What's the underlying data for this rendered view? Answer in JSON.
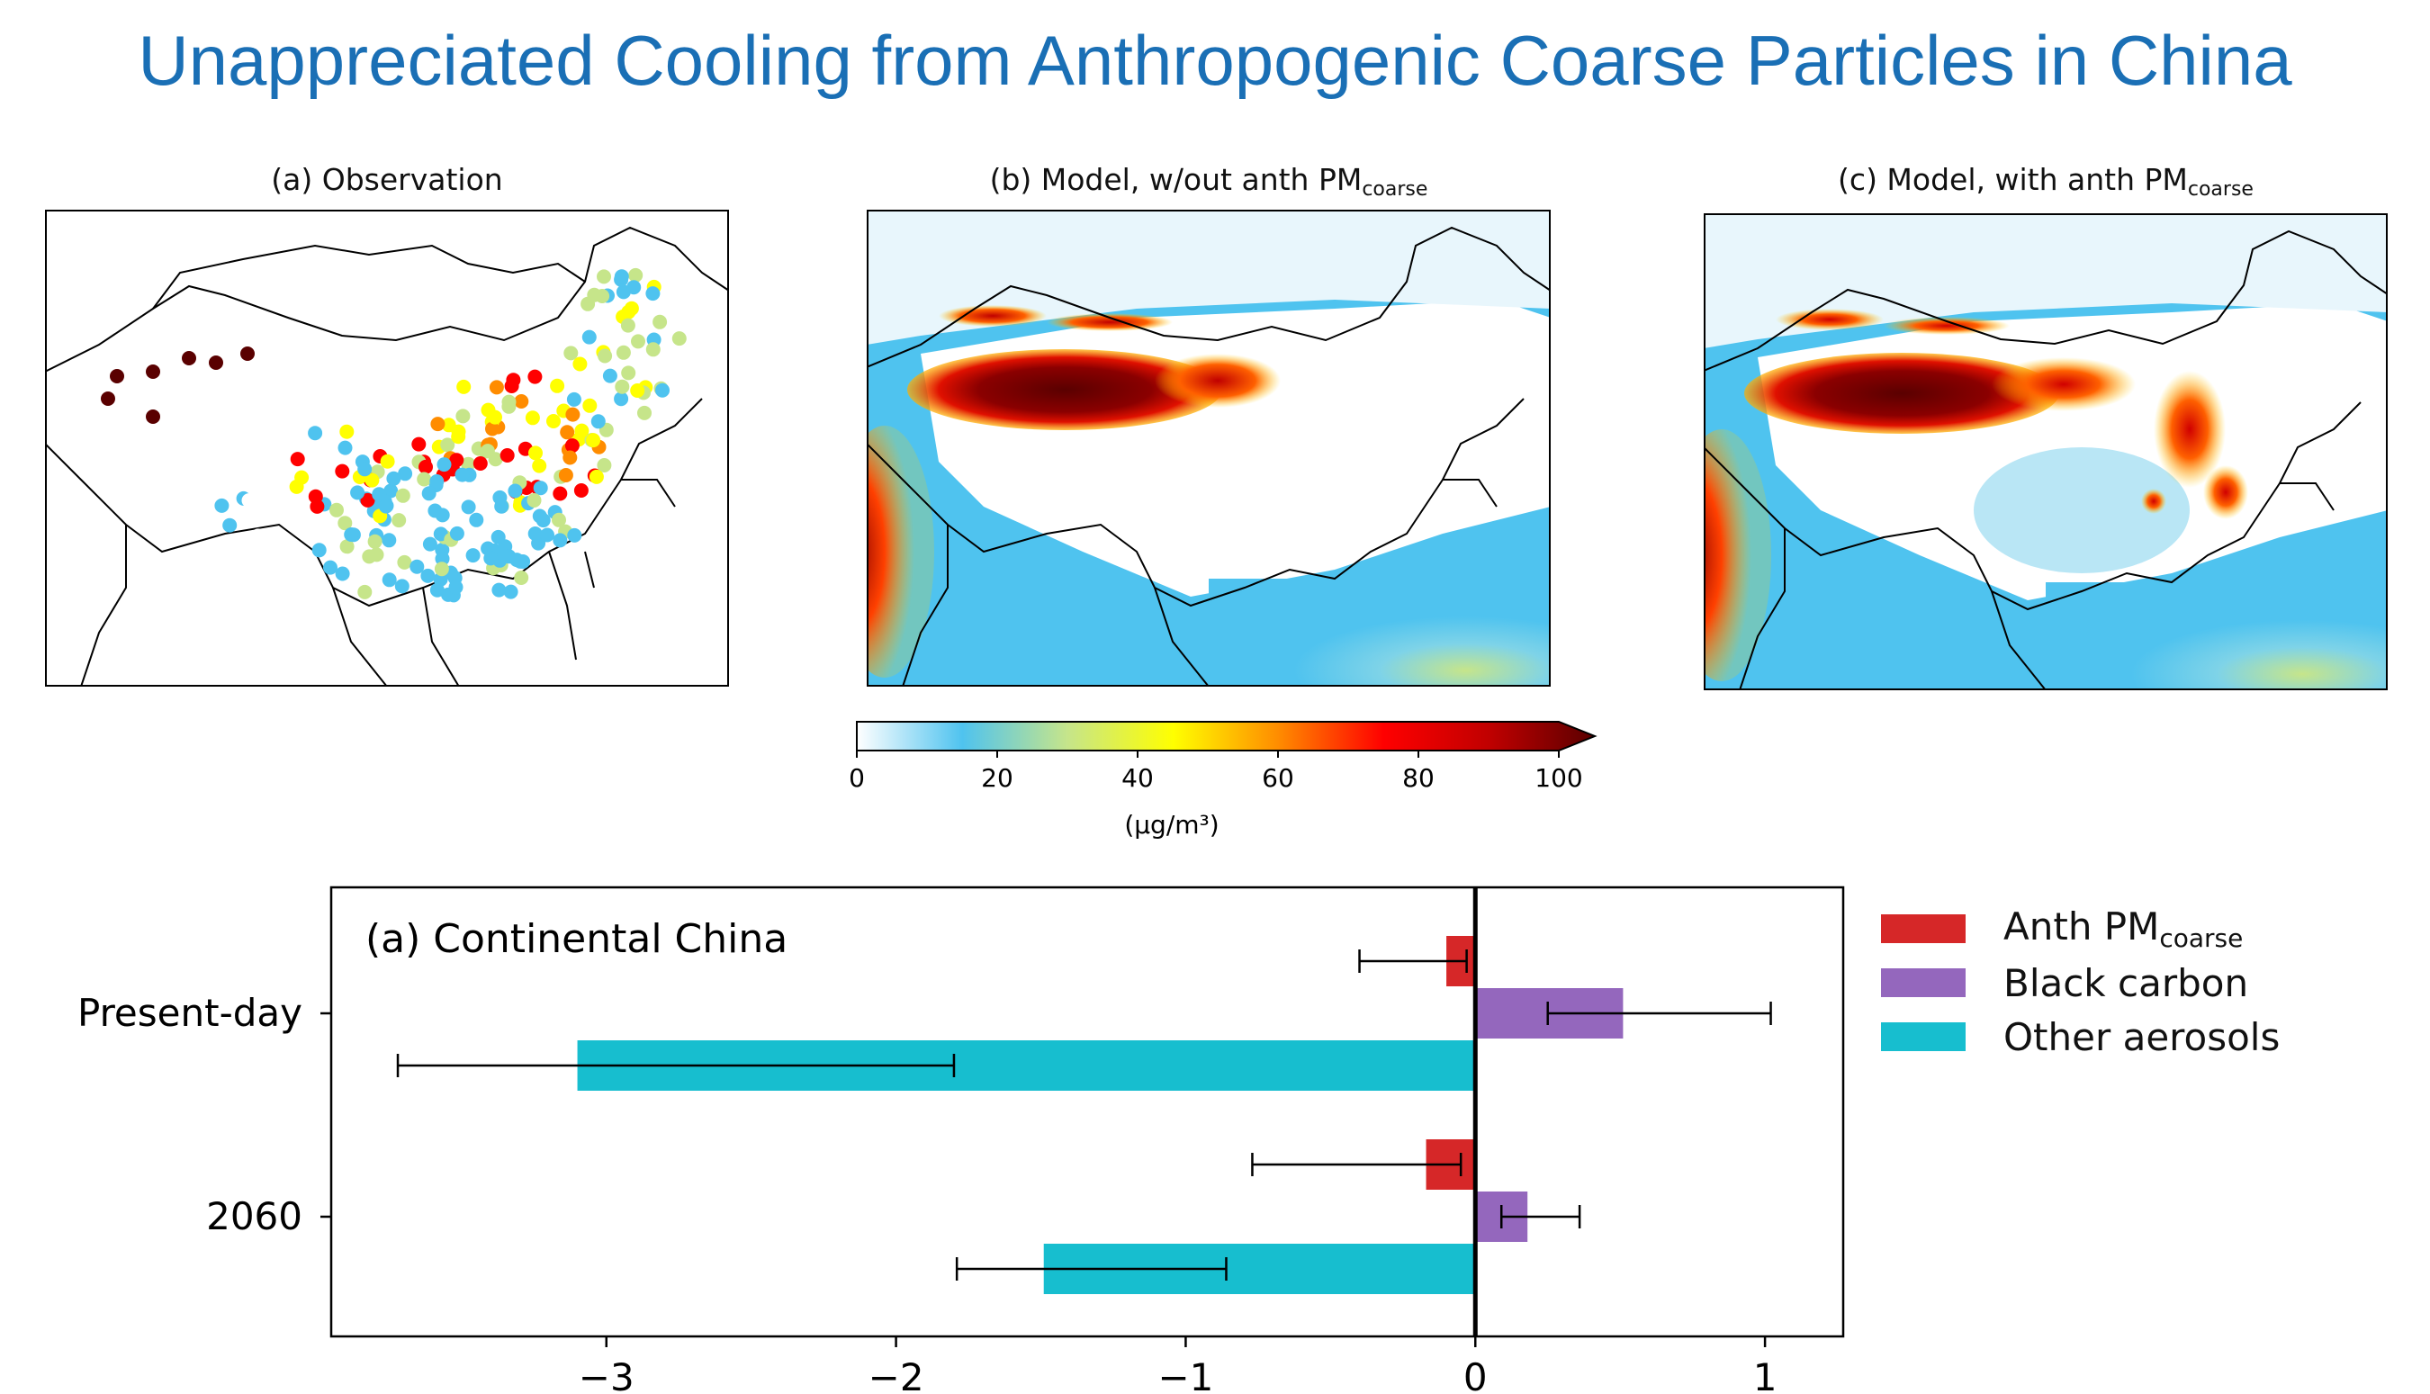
{
  "header": {
    "title": "Unappreciated Cooling from Anthropogenic Coarse Particles in China"
  },
  "maps": [
    {
      "title": "(a) Observation",
      "sub": ""
    },
    {
      "title": "(b) Model, w/out anth PM",
      "sub": "coarse"
    },
    {
      "title": "(c) Model, with anth PM",
      "sub": "coarse"
    }
  ],
  "colorbar": {
    "ticks": [
      "0",
      "20",
      "40",
      "60",
      "80",
      "100"
    ],
    "unit_label": "(μg/m³)",
    "colors": [
      "#ffffff",
      "#4fc3ef",
      "#c6e58a",
      "#ffff00",
      "#ff8c00",
      "#ff0000",
      "#c00000",
      "#5a0000"
    ],
    "range": [
      0,
      100
    ]
  },
  "chart_data": {
    "type": "bar",
    "orientation": "horizontal",
    "panel_label": "(a) Continental China",
    "categories": [
      "Present-day",
      "2060"
    ],
    "series": [
      {
        "name": "Anth PM",
        "name_sub": "coarse",
        "color": "#d62728",
        "values": [
          -0.1,
          -0.17
        ],
        "err_low": [
          -0.4,
          -0.77
        ],
        "err_high": [
          -0.03,
          -0.05
        ]
      },
      {
        "name": "Black carbon",
        "color": "#9467bd",
        "values": [
          0.51,
          0.18
        ],
        "err_low": [
          0.25,
          0.09
        ],
        "err_high": [
          1.02,
          0.36
        ]
      },
      {
        "name": "Other aerosols",
        "color": "#17becf",
        "values": [
          -3.1,
          -1.49
        ],
        "err_low": [
          -3.72,
          -1.79
        ],
        "err_high": [
          -1.8,
          -0.86
        ]
      }
    ],
    "xlim": [
      -3.95,
      1.27
    ],
    "xticks": [
      -3,
      -2,
      -1,
      0,
      1
    ],
    "xtick_labels": [
      "−3",
      "−2",
      "−1",
      "0",
      "1"
    ],
    "xlabel": "",
    "ylabel": "",
    "legend_position": "right-outside-top",
    "grid": false
  }
}
